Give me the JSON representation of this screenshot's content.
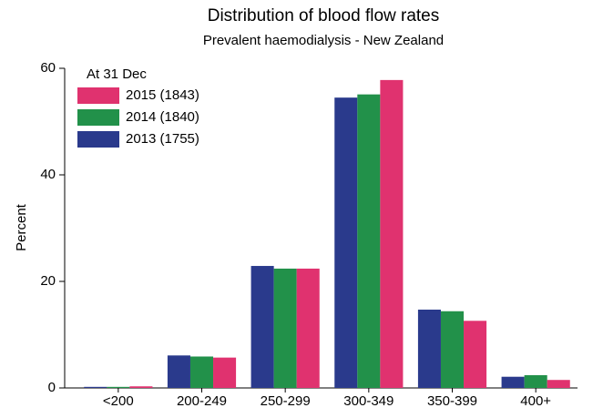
{
  "chart_data": {
    "type": "bar",
    "title": "Distribution of blood flow rates",
    "subtitle": "Prevalent haemodialysis - New Zealand",
    "y_label": "Percent",
    "legend_title": "At 31 Dec",
    "legend_position": "upper left",
    "categories": [
      "<200",
      "200-249",
      "250-299",
      "300-349",
      "350-399",
      "400+"
    ],
    "series": [
      {
        "name": "2013 (1755)",
        "color": "#2a3a8c",
        "values": [
          0.2,
          6.1,
          22.9,
          54.5,
          14.7,
          2.1
        ]
      },
      {
        "name": "2014 (1840)",
        "color": "#22914a",
        "values": [
          0.2,
          5.9,
          22.4,
          55.1,
          14.4,
          2.4
        ]
      },
      {
        "name": "2015 (1843)",
        "color": "#e0326f",
        "values": [
          0.3,
          5.7,
          22.4,
          57.8,
          12.6,
          1.5
        ]
      }
    ],
    "ylim": [
      0,
      60
    ],
    "yticks": [
      0,
      20,
      40,
      60
    ]
  }
}
